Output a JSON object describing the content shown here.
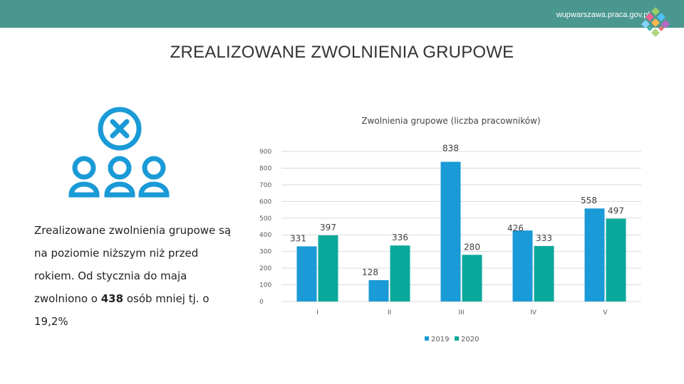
{
  "header": {
    "site": "wupwarszawa.praca.gov.pl"
  },
  "page": {
    "title": "ZREALIZOWANE ZWOLNIENIA GRUPOWE"
  },
  "description": {
    "lines": [
      "Zrealizowane zwolnienia grupowe są",
      "na poziomie niższym niż przed",
      "rokiem. Od stycznia do maja",
      "zwolniono o 438 osób mniej tj. o",
      "19,2%"
    ],
    "highlight": "438"
  },
  "icons": {
    "people": "people-remove-icon",
    "logo": "mosaic-logo-icon"
  },
  "colors": {
    "header": "#4a9790",
    "series_2019": "#1a9ad6",
    "series_2020": "#0aa89b",
    "icon": "#1a9ad6"
  },
  "chart_data": {
    "type": "bar",
    "title": "Zwolnienia grupowe (liczba pracowników)",
    "categories": [
      "I",
      "II",
      "III",
      "IV",
      "V"
    ],
    "series": [
      {
        "name": "2019",
        "values": [
          331,
          128,
          838,
          426,
          558
        ]
      },
      {
        "name": "2020",
        "values": [
          397,
          336,
          280,
          333,
          497
        ]
      }
    ],
    "ylim": [
      0,
      900
    ],
    "yticks": [
      0,
      100,
      200,
      300,
      400,
      500,
      600,
      700,
      800,
      900
    ],
    "grid": true,
    "legend": "bottom"
  }
}
